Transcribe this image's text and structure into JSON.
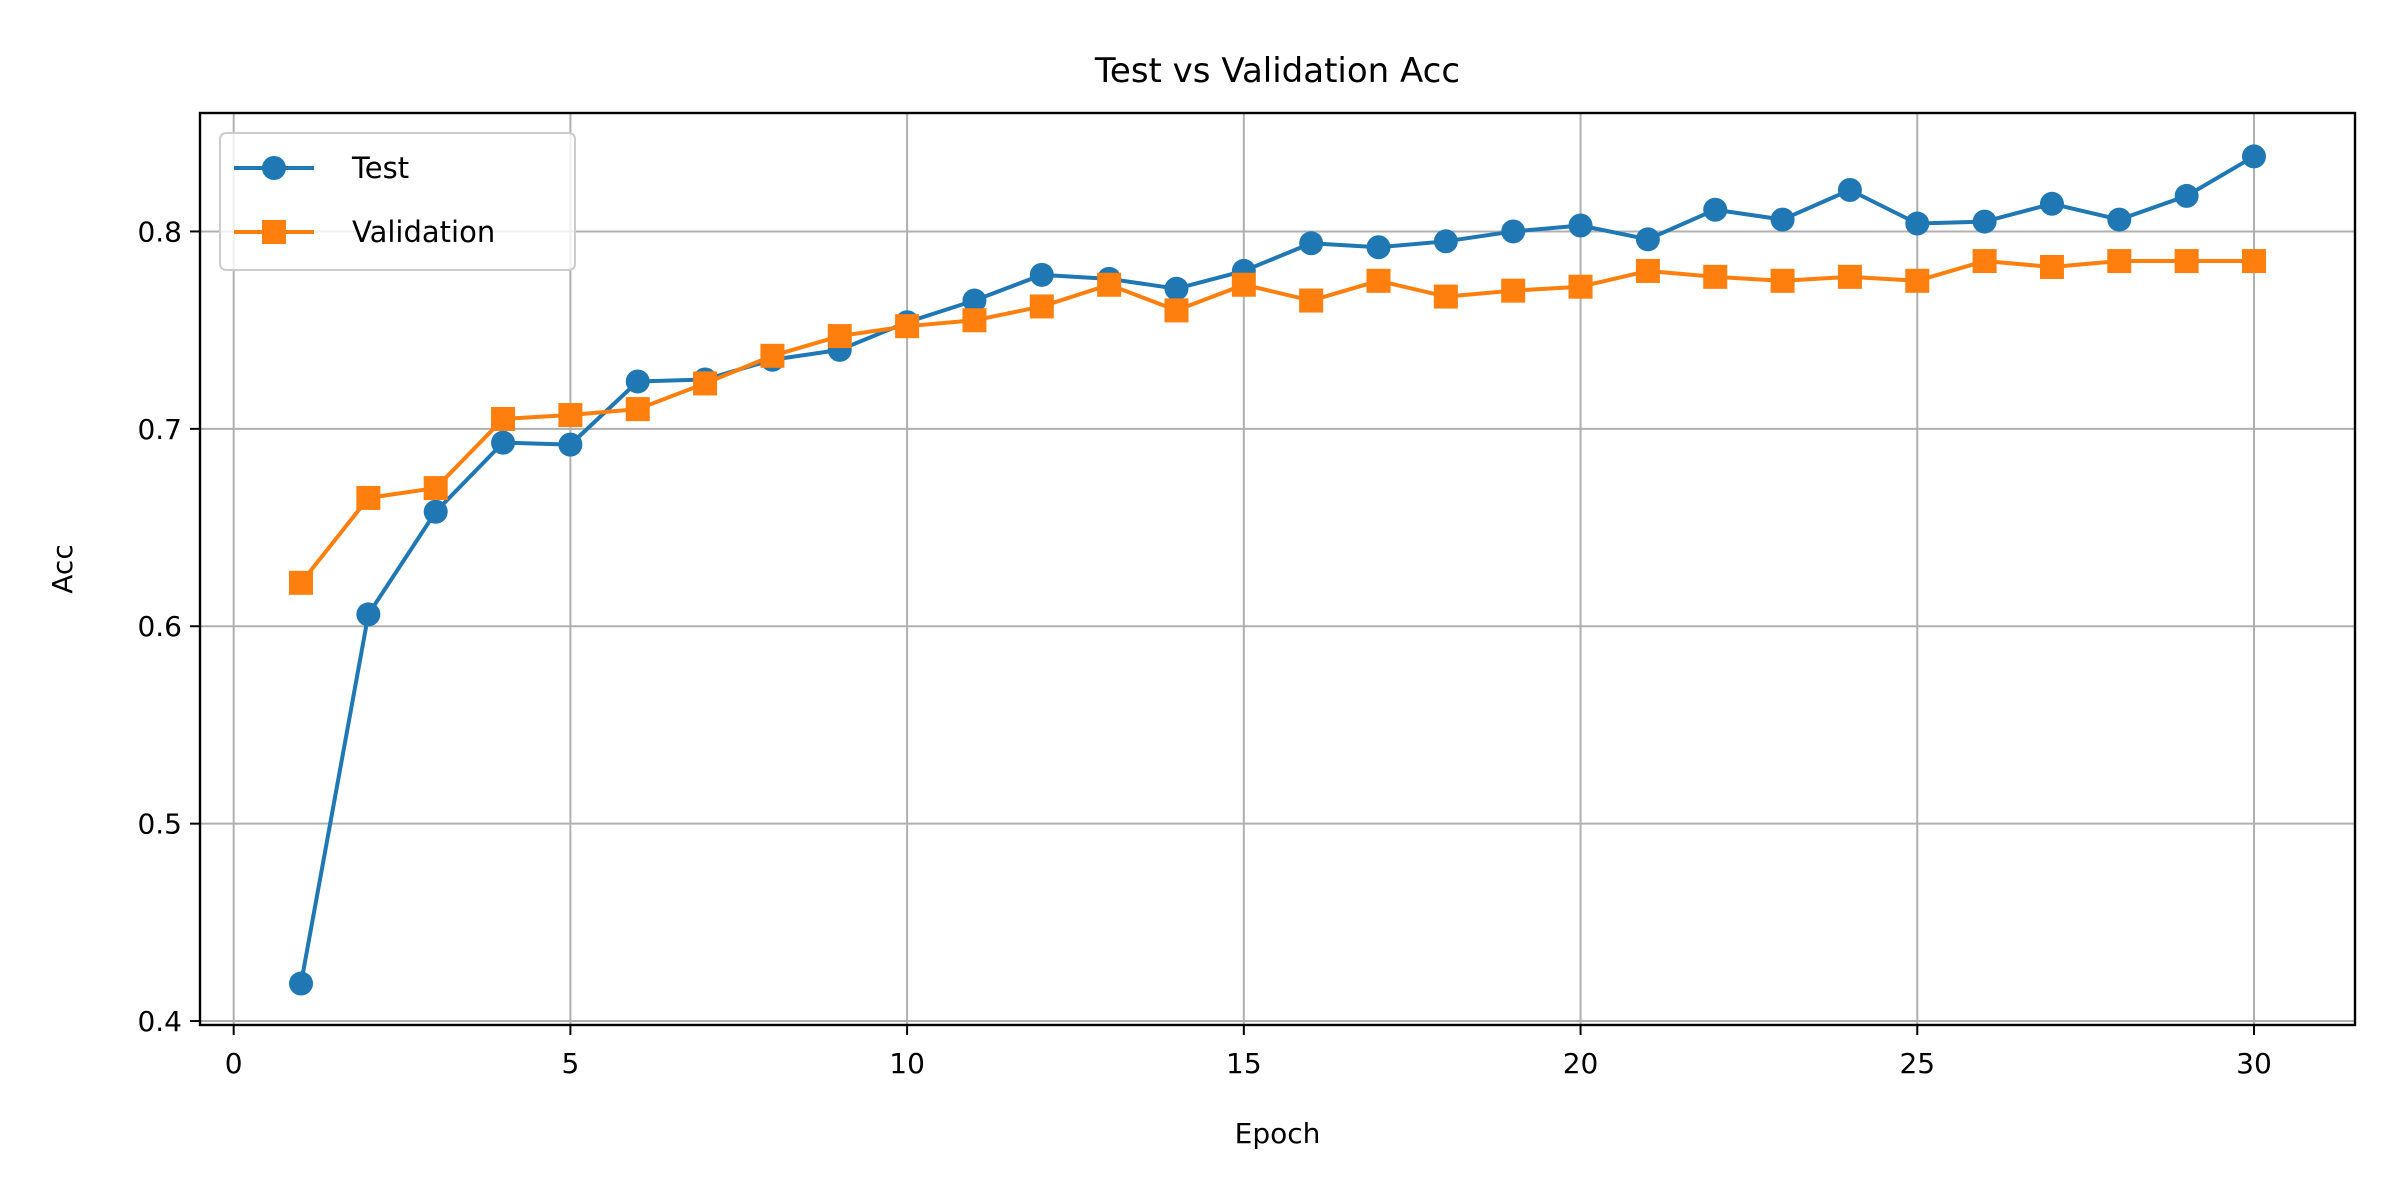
{
  "chart_data": {
    "type": "line",
    "title": "Test vs Validation Acc",
    "xlabel": "Epoch",
    "ylabel": "Acc",
    "xlim": [
      -0.5,
      31.5
    ],
    "ylim": [
      0.398,
      0.86
    ],
    "xticks": [
      0,
      5,
      10,
      15,
      20,
      25,
      30
    ],
    "yticks": [
      0.4,
      0.5,
      0.6,
      0.7,
      0.8
    ],
    "grid": true,
    "legend_position": "upper-left",
    "x": [
      1,
      2,
      3,
      4,
      5,
      6,
      7,
      8,
      9,
      10,
      11,
      12,
      13,
      14,
      15,
      16,
      17,
      18,
      19,
      20,
      21,
      22,
      23,
      24,
      25,
      26,
      27,
      28,
      29,
      30
    ],
    "series": [
      {
        "name": "Test",
        "color": "#1f77b4",
        "marker": "circle",
        "values": [
          0.419,
          0.606,
          0.658,
          0.693,
          0.692,
          0.724,
          0.725,
          0.735,
          0.74,
          0.754,
          0.765,
          0.778,
          0.776,
          0.771,
          0.78,
          0.794,
          0.792,
          0.795,
          0.8,
          0.803,
          0.796,
          0.811,
          0.806,
          0.821,
          0.804,
          0.805,
          0.814,
          0.806,
          0.818,
          0.838
        ]
      },
      {
        "name": "Validation",
        "color": "#ff7f0e",
        "marker": "square",
        "values": [
          0.622,
          0.665,
          0.67,
          0.705,
          0.707,
          0.71,
          0.723,
          0.737,
          0.747,
          0.752,
          0.755,
          0.762,
          0.773,
          0.76,
          0.773,
          0.765,
          0.775,
          0.767,
          0.77,
          0.772,
          0.78,
          0.777,
          0.775,
          0.777,
          0.775,
          0.785,
          0.782,
          0.785,
          0.785,
          0.785
        ]
      }
    ]
  }
}
